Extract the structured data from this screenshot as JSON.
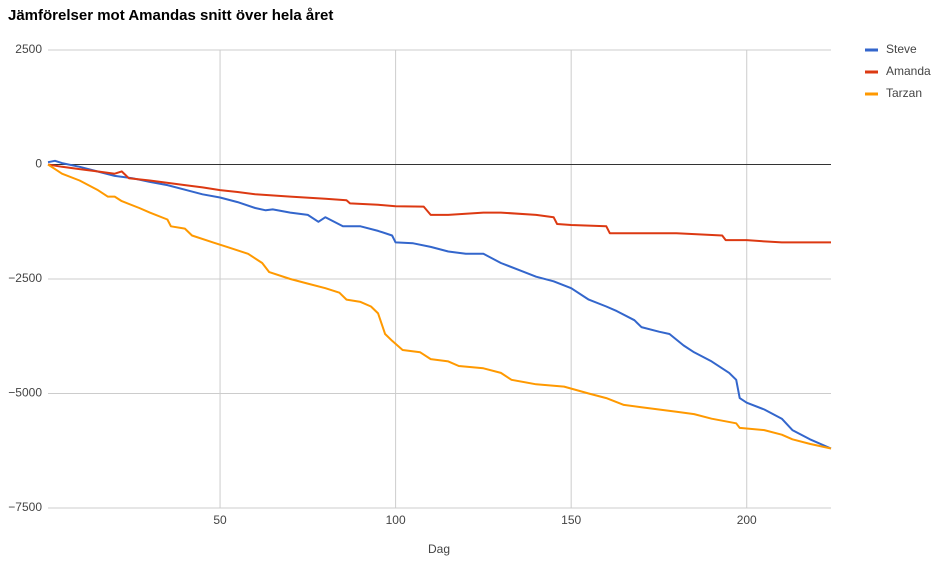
{
  "chart_data": {
    "type": "line",
    "title": "Jämförelser mot Amandas snitt över hela året",
    "x_label": "Dag",
    "xlim": [
      1,
      224
    ],
    "xticks": [
      50,
      100,
      150,
      200
    ],
    "ylim": [
      -7500,
      2500
    ],
    "yticks": [
      {
        "value": -7500,
        "label": "−7500"
      },
      {
        "value": -5000,
        "label": "−5000"
      },
      {
        "value": -2500,
        "label": "−2500"
      },
      0,
      2500
    ],
    "grid": true,
    "legend": "right",
    "series": [
      {
        "name": "Steve",
        "color": "#3366cc",
        "x": [
          1,
          3,
          5,
          10,
          15,
          20,
          25,
          30,
          35,
          40,
          45,
          50,
          55,
          60,
          63,
          65,
          70,
          75,
          78,
          80,
          85,
          90,
          95,
          99,
          100,
          105,
          110,
          115,
          120,
          125,
          130,
          135,
          140,
          145,
          150,
          155,
          160,
          163,
          168,
          170,
          175,
          178,
          182,
          185,
          190,
          195,
          197,
          198,
          200,
          205,
          210,
          213,
          218,
          224
        ],
        "values": [
          50,
          80,
          30,
          -50,
          -150,
          -250,
          -300,
          -380,
          -450,
          -550,
          -650,
          -720,
          -820,
          -950,
          -1000,
          -980,
          -1050,
          -1100,
          -1250,
          -1150,
          -1350,
          -1350,
          -1450,
          -1550,
          -1700,
          -1720,
          -1800,
          -1900,
          -1950,
          -1950,
          -2150,
          -2300,
          -2450,
          -2550,
          -2700,
          -2950,
          -3100,
          -3200,
          -3400,
          -3550,
          -3650,
          -3700,
          -3950,
          -4100,
          -4300,
          -4550,
          -4700,
          -5100,
          -5200,
          -5350,
          -5550,
          -5800,
          -6000,
          -6200
        ]
      },
      {
        "name": "Amanda",
        "color": "#dc3912",
        "x": [
          1,
          5,
          10,
          15,
          20,
          22,
          24,
          30,
          40,
          45,
          50,
          55,
          60,
          70,
          80,
          86,
          87,
          95,
          100,
          108,
          110,
          115,
          125,
          130,
          140,
          145,
          146,
          150,
          160,
          161,
          170,
          180,
          193,
          194,
          200,
          205,
          210,
          224
        ],
        "values": [
          0,
          -50,
          -100,
          -150,
          -200,
          -150,
          -300,
          -350,
          -450,
          -500,
          -560,
          -600,
          -650,
          -700,
          -750,
          -780,
          -850,
          -880,
          -910,
          -920,
          -1100,
          -1100,
          -1050,
          -1050,
          -1100,
          -1150,
          -1300,
          -1320,
          -1350,
          -1500,
          -1500,
          -1500,
          -1550,
          -1650,
          -1650,
          -1680,
          -1700,
          -1700
        ]
      },
      {
        "name": "Tarzan",
        "color": "#ff9900",
        "x": [
          1,
          3,
          5,
          10,
          15,
          18,
          20,
          22,
          27,
          30,
          35,
          36,
          40,
          42,
          48,
          52,
          58,
          62,
          64,
          70,
          75,
          80,
          84,
          86,
          90,
          93,
          95,
          97,
          99,
          102,
          107,
          110,
          115,
          118,
          125,
          130,
          133,
          140,
          148,
          155,
          160,
          165,
          170,
          180,
          185,
          190,
          197,
          198,
          205,
          210,
          213,
          218,
          224
        ],
        "values": [
          0,
          -100,
          -200,
          -350,
          -550,
          -700,
          -700,
          -800,
          -950,
          -1050,
          -1200,
          -1350,
          -1400,
          -1550,
          -1700,
          -1800,
          -1950,
          -2150,
          -2350,
          -2500,
          -2600,
          -2700,
          -2800,
          -2950,
          -3000,
          -3100,
          -3250,
          -3700,
          -3850,
          -4050,
          -4100,
          -4250,
          -4300,
          -4400,
          -4450,
          -4550,
          -4700,
          -4800,
          -4850,
          -5000,
          -5100,
          -5250,
          -5300,
          -5400,
          -5450,
          -5550,
          -5650,
          -5750,
          -5800,
          -5900,
          -6000,
          -6100,
          -6200
        ]
      }
    ]
  }
}
